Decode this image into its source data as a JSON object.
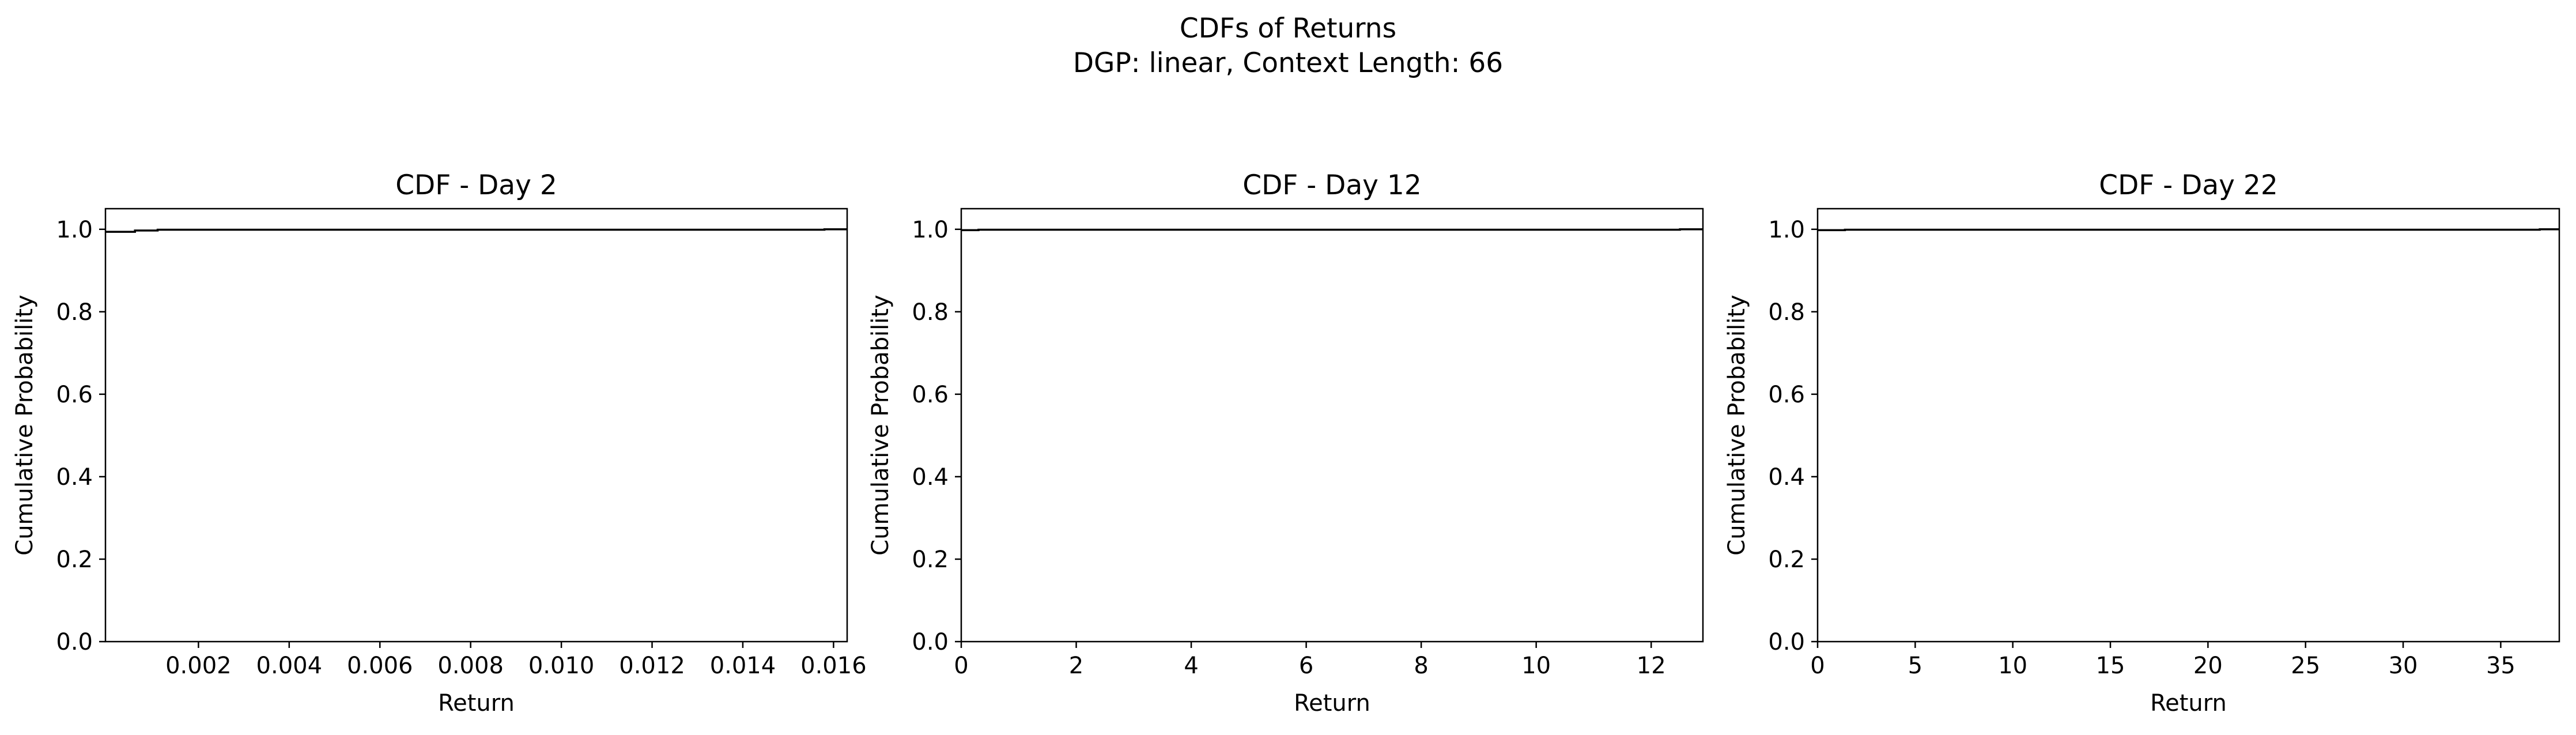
{
  "figure": {
    "title_line1": "CDFs of Returns",
    "title_line2": "DGP: linear, Context Length: 66"
  },
  "chart_data": [
    {
      "type": "line",
      "title": "CDF - Day 2",
      "xlabel": "Return",
      "ylabel": "Cumulative Probability",
      "xlim": [
        -5e-05,
        0.0163
      ],
      "ylim": [
        0,
        1.05
      ],
      "xticks": [
        0.002,
        0.004,
        0.006,
        0.008,
        0.01,
        0.012,
        0.014,
        0.016
      ],
      "xtick_labels": [
        "0.002",
        "0.004",
        "0.006",
        "0.008",
        "0.010",
        "0.012",
        "0.014",
        "0.016"
      ],
      "yticks": [
        0.0,
        0.2,
        0.4,
        0.6,
        0.8,
        1.0
      ],
      "ytick_labels": [
        "0.0",
        "0.2",
        "0.4",
        "0.6",
        "0.8",
        "1.0"
      ],
      "color": "#000000",
      "series": [
        {
          "x": [
            -5e-05,
            0.0006,
            0.0006,
            0.0011,
            0.0011,
            0.0158,
            0.0158,
            0.0163
          ],
          "y": [
            0.994,
            0.994,
            0.997,
            0.997,
            0.999,
            0.999,
            1.0,
            1.0
          ]
        }
      ]
    },
    {
      "type": "line",
      "title": "CDF - Day 12",
      "xlabel": "Return",
      "ylabel": "Cumulative Probability",
      "xlim": [
        0,
        12.9
      ],
      "ylim": [
        0,
        1.05
      ],
      "xticks": [
        0,
        2,
        4,
        6,
        8,
        10,
        12
      ],
      "xtick_labels": [
        "0",
        "2",
        "4",
        "6",
        "8",
        "10",
        "12"
      ],
      "yticks": [
        0.0,
        0.2,
        0.4,
        0.6,
        0.8,
        1.0
      ],
      "ytick_labels": [
        "0.0",
        "0.2",
        "0.4",
        "0.6",
        "0.8",
        "1.0"
      ],
      "color": "#000000",
      "series": [
        {
          "x": [
            0,
            0.3,
            0.3,
            12.5,
            12.5,
            12.9
          ],
          "y": [
            0.998,
            0.998,
            0.999,
            0.999,
            1.0,
            1.0
          ]
        }
      ]
    },
    {
      "type": "line",
      "title": "CDF - Day 22",
      "xlabel": "Return",
      "ylabel": "Cumulative Probability",
      "xlim": [
        0,
        38
      ],
      "ylim": [
        0,
        1.05
      ],
      "xticks": [
        0,
        5,
        10,
        15,
        20,
        25,
        30,
        35
      ],
      "xtick_labels": [
        "0",
        "5",
        "10",
        "15",
        "20",
        "25",
        "30",
        "35"
      ],
      "yticks": [
        0.0,
        0.2,
        0.4,
        0.6,
        0.8,
        1.0
      ],
      "ytick_labels": [
        "0.0",
        "0.2",
        "0.4",
        "0.6",
        "0.8",
        "1.0"
      ],
      "color": "#000000",
      "series": [
        {
          "x": [
            0,
            1.4,
            1.4,
            37.0,
            37.0,
            38
          ],
          "y": [
            0.998,
            0.998,
            0.999,
            0.999,
            1.0,
            1.0
          ]
        }
      ]
    }
  ]
}
